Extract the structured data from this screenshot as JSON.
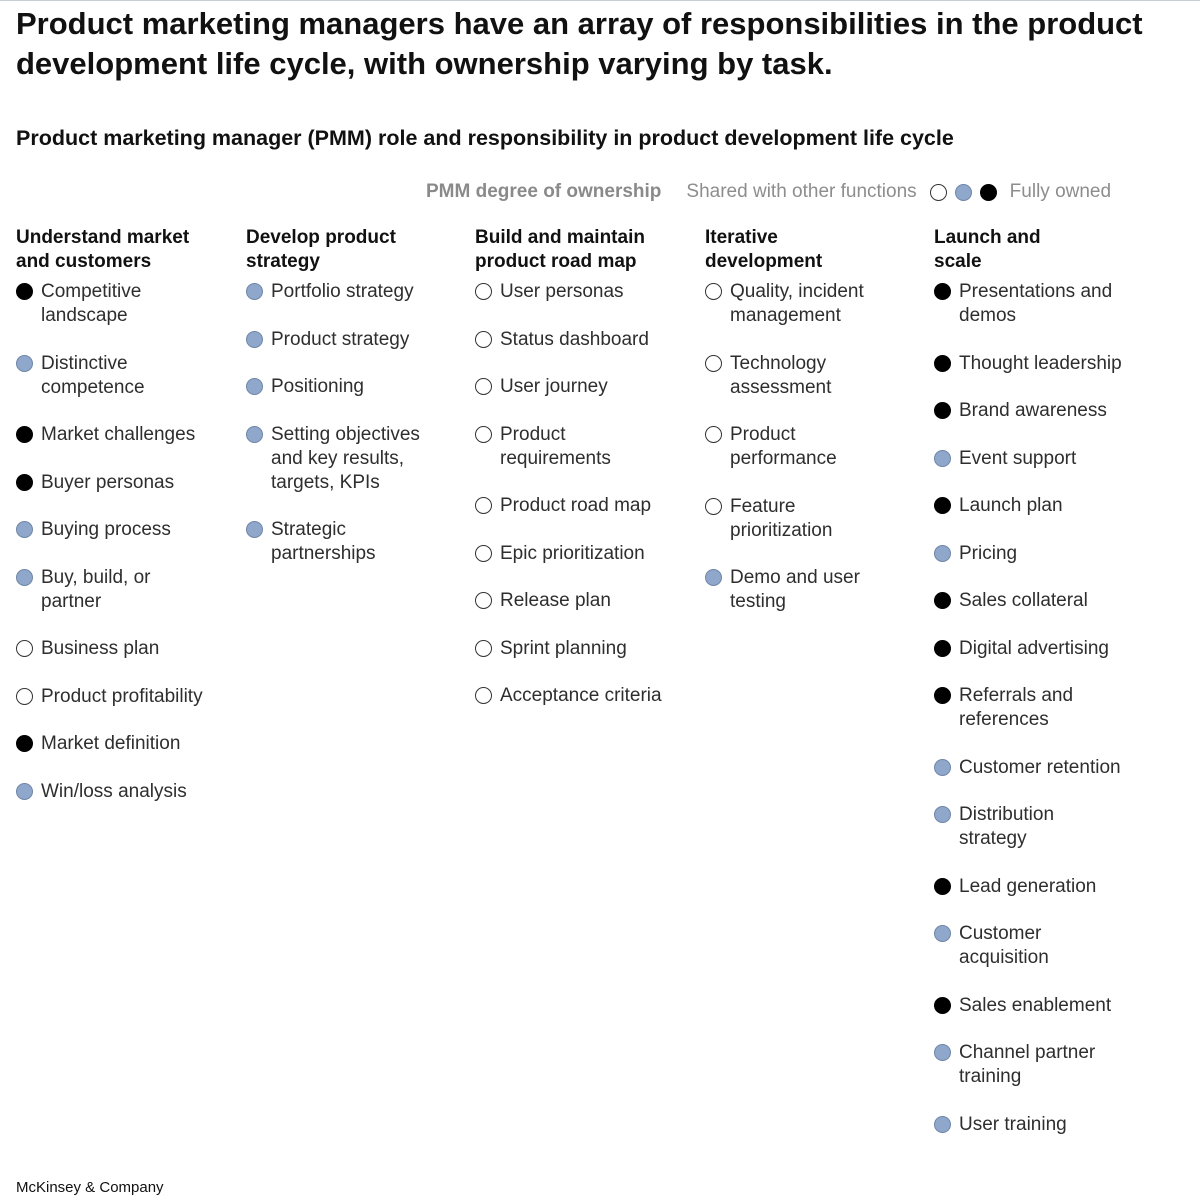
{
  "headline": "Product marketing managers have an array of responsibilities in the product development life cycle, with ownership varying by task.",
  "subtitle": "Product marketing manager (PMM) role and responsibility in product development life cycle",
  "legend": {
    "title": "PMM degree of ownership",
    "low_label": "Shared with other functions",
    "high_label": "Fully owned",
    "levels": [
      "none",
      "partial",
      "full"
    ]
  },
  "columns": [
    {
      "heading": "Understand market\nand customers",
      "items": [
        {
          "label": "Competitive\nlandscape",
          "ownership": "full"
        },
        {
          "label": "Distinctive\ncompetence",
          "ownership": "partial"
        },
        {
          "label": "Market challenges",
          "ownership": "full"
        },
        {
          "label": "Buyer personas",
          "ownership": "full"
        },
        {
          "label": "Buying process",
          "ownership": "partial"
        },
        {
          "label": "Buy, build, or\npartner",
          "ownership": "partial"
        },
        {
          "label": "Business plan",
          "ownership": "none"
        },
        {
          "label": "Product profitability",
          "ownership": "none"
        },
        {
          "label": "Market definition",
          "ownership": "full"
        },
        {
          "label": "Win/loss analysis",
          "ownership": "partial"
        }
      ]
    },
    {
      "heading": "Develop product\nstrategy",
      "items": [
        {
          "label": "Portfolio strategy",
          "ownership": "partial"
        },
        {
          "label": "Product strategy",
          "ownership": "partial"
        },
        {
          "label": "Positioning",
          "ownership": "partial"
        },
        {
          "label": "Setting objectives\nand key results,\ntargets, KPIs",
          "ownership": "partial"
        },
        {
          "label": "Strategic\npartnerships",
          "ownership": "partial"
        }
      ]
    },
    {
      "heading": "Build and maintain\nproduct road map",
      "items": [
        {
          "label": "User personas",
          "ownership": "none"
        },
        {
          "label": "Status dashboard",
          "ownership": "none"
        },
        {
          "label": "User journey",
          "ownership": "none"
        },
        {
          "label": "Product\nrequirements",
          "ownership": "none"
        },
        {
          "label": "Product road map",
          "ownership": "none"
        },
        {
          "label": "Epic prioritization",
          "ownership": "none"
        },
        {
          "label": "Release plan",
          "ownership": "none"
        },
        {
          "label": "Sprint planning",
          "ownership": "none"
        },
        {
          "label": "Acceptance criteria",
          "ownership": "none"
        }
      ]
    },
    {
      "heading": "Iterative\ndevelopment",
      "items": [
        {
          "label": "Quality, incident\nmanagement",
          "ownership": "none"
        },
        {
          "label": "Technology\nassessment",
          "ownership": "none"
        },
        {
          "label": "Product\nperformance",
          "ownership": "none"
        },
        {
          "label": "Feature\nprioritization",
          "ownership": "none"
        },
        {
          "label": "Demo and user\ntesting",
          "ownership": "partial"
        }
      ]
    },
    {
      "heading": "Launch and\nscale",
      "items": [
        {
          "label": "Presentations and\ndemos",
          "ownership": "full"
        },
        {
          "label": "Thought leadership",
          "ownership": "full"
        },
        {
          "label": "Brand awareness",
          "ownership": "full"
        },
        {
          "label": "Event support",
          "ownership": "partial"
        },
        {
          "label": "Launch plan",
          "ownership": "full"
        },
        {
          "label": "Pricing",
          "ownership": "partial"
        },
        {
          "label": "Sales collateral",
          "ownership": "full"
        },
        {
          "label": "Digital advertising",
          "ownership": "full"
        },
        {
          "label": "Referrals and\nreferences",
          "ownership": "full"
        },
        {
          "label": "Customer retention",
          "ownership": "partial"
        },
        {
          "label": "Distribution\nstrategy",
          "ownership": "partial"
        },
        {
          "label": "Lead generation",
          "ownership": "full"
        },
        {
          "label": "Customer\nacquisition",
          "ownership": "partial"
        },
        {
          "label": "Sales enablement",
          "ownership": "full"
        },
        {
          "label": "Channel partner\ntraining",
          "ownership": "partial"
        },
        {
          "label": "User training",
          "ownership": "partial"
        }
      ]
    }
  ],
  "footer": "McKinsey & Company"
}
